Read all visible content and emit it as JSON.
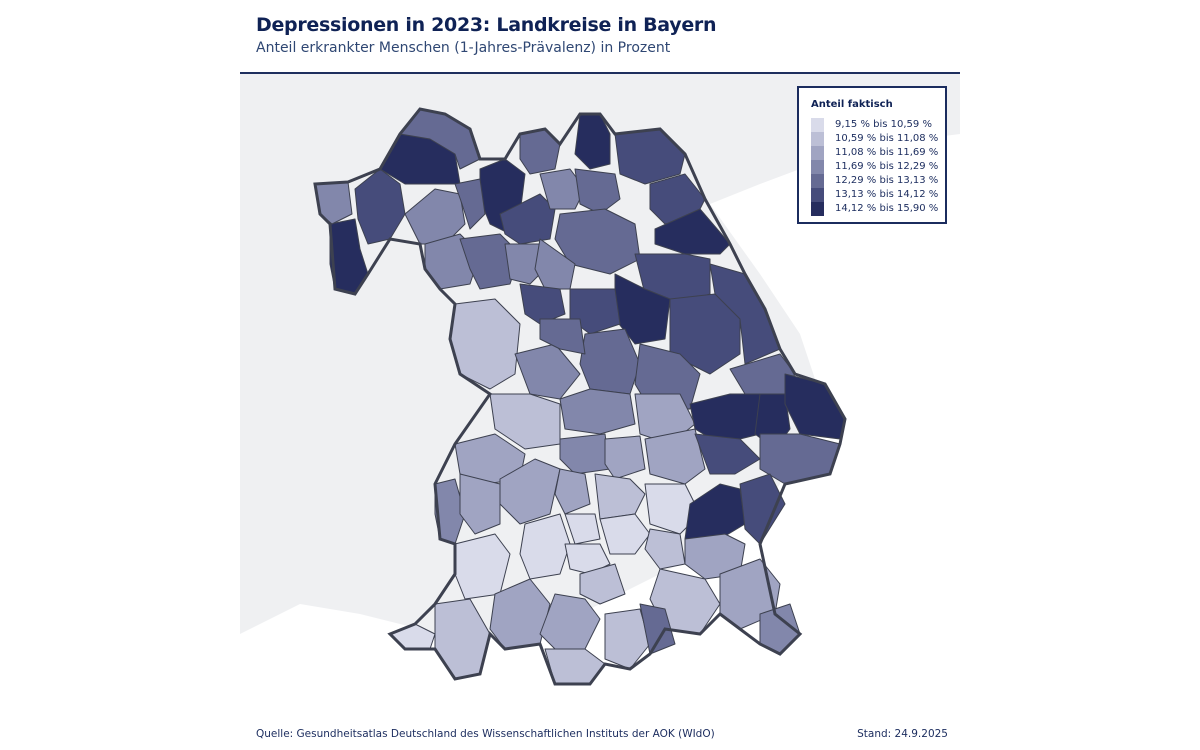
{
  "header": {
    "title": "Depressionen in 2023: Landkreise in Bayern",
    "subtitle": "Anteil erkrankter Menschen (1-Jahres-Prävalenz) in Prozent"
  },
  "legend": {
    "title": "Anteil faktisch",
    "classes": [
      {
        "label": "9,15 % bis 10,59 %",
        "color": "#d9dbea"
      },
      {
        "label": "10,59 % bis 11,08 %",
        "color": "#bcbfd6"
      },
      {
        "label": "11,08 % bis 11,69 %",
        "color": "#a0a4c2"
      },
      {
        "label": "11,69 % bis 12,29 %",
        "color": "#8287ab"
      },
      {
        "label": "12,29 % bis 13,13 %",
        "color": "#656a93"
      },
      {
        "label": "13,13 % bis 14,12 %",
        "color": "#464c7b"
      },
      {
        "label": "14,12 % bis 15,90 %",
        "color": "#262d5e"
      }
    ]
  },
  "footer": {
    "source": "Quelle: Gesundheitsatlas Deutschland des Wissenschaftlichen Instituts der AOK (WIdO)",
    "stand": "Stand: 24.9.2025"
  },
  "chart_data": {
    "type": "choropleth",
    "title": "Depressionen in 2023: Landkreise in Bayern",
    "subtitle": "Anteil erkrankter Menschen (1-Jahres-Prävalenz) in Prozent",
    "region": "Bayern",
    "unit": "%",
    "legend_position": "top-right",
    "classes": [
      "9,15 % bis 10,59 %",
      "10,59 % bis 11,08 %",
      "11,08 % bis 11,69 %",
      "11,69 % bis 12,29 %",
      "12,29 % bis 13,13 %",
      "13,13 % bis 14,12 %",
      "14,12 % bis 15,90 %"
    ],
    "districts": [
      {
        "id": "unterfranken-west",
        "class": 6
      },
      {
        "id": "aschaffenburg-nord",
        "class": 3
      },
      {
        "id": "main-spessart",
        "class": 5
      },
      {
        "id": "bad-kissingen",
        "class": 6
      },
      {
        "id": "rhoen-grabfeld",
        "class": 4
      },
      {
        "id": "hassberge",
        "class": 6
      },
      {
        "id": "coburg",
        "class": 4
      },
      {
        "id": "kronach",
        "class": 6
      },
      {
        "id": "hof",
        "class": 5
      },
      {
        "id": "wunsiedel",
        "class": 5
      },
      {
        "id": "tirschenreuth",
        "class": 6
      },
      {
        "id": "wuerzburg",
        "class": 3
      },
      {
        "id": "schweinfurt",
        "class": 4
      },
      {
        "id": "bamberg",
        "class": 5
      },
      {
        "id": "lichtenfels",
        "class": 3
      },
      {
        "id": "kulmbach",
        "class": 4
      },
      {
        "id": "bayreuth",
        "class": 4
      },
      {
        "id": "neustadt-waldnaab",
        "class": 5
      },
      {
        "id": "kitzingen",
        "class": 3
      },
      {
        "id": "neustadt-aisch",
        "class": 4
      },
      {
        "id": "erlangen-hoechstadt",
        "class": 3
      },
      {
        "id": "forchheim",
        "class": 3
      },
      {
        "id": "amberg-sulzbach",
        "class": 6
      },
      {
        "id": "schwandorf",
        "class": 5
      },
      {
        "id": "cham",
        "class": 5
      },
      {
        "id": "ansbach",
        "class": 1
      },
      {
        "id": "fuerth-nuernberg",
        "class": 5
      },
      {
        "id": "nuernberger-land",
        "class": 5
      },
      {
        "id": "neumarkt",
        "class": 4
      },
      {
        "id": "regensburg",
        "class": 4
      },
      {
        "id": "regen",
        "class": 4
      },
      {
        "id": "weissenburg",
        "class": 3
      },
      {
        "id": "roth",
        "class": 4
      },
      {
        "id": "eichstaett",
        "class": 3
      },
      {
        "id": "kelheim",
        "class": 2
      },
      {
        "id": "straubing-bogen",
        "class": 6
      },
      {
        "id": "deggendorf",
        "class": 6
      },
      {
        "id": "freyung-grafenau",
        "class": 6
      },
      {
        "id": "donau-ries",
        "class": 1
      },
      {
        "id": "neuburg",
        "class": 3
      },
      {
        "id": "pfaffenhofen",
        "class": 2
      },
      {
        "id": "landshut",
        "class": 2
      },
      {
        "id": "dingolfing",
        "class": 5
      },
      {
        "id": "passau",
        "class": 4
      },
      {
        "id": "dillingen",
        "class": 2
      },
      {
        "id": "augsburg",
        "class": 2
      },
      {
        "id": "aichach",
        "class": 2
      },
      {
        "id": "freising",
        "class": 1
      },
      {
        "id": "erding",
        "class": 0
      },
      {
        "id": "muehldorf",
        "class": 6
      },
      {
        "id": "rottal-inn",
        "class": 5
      },
      {
        "id": "neu-ulm",
        "class": 3
      },
      {
        "id": "guenzburg",
        "class": 2
      },
      {
        "id": "dachau",
        "class": 0
      },
      {
        "id": "muenchen",
        "class": 0
      },
      {
        "id": "ebersberg",
        "class": 1
      },
      {
        "id": "altoetting",
        "class": 2
      },
      {
        "id": "unterallgaeu",
        "class": 0
      },
      {
        "id": "landsberg",
        "class": 0
      },
      {
        "id": "fuerstenfeldbruck",
        "class": 0
      },
      {
        "id": "starnberg",
        "class": 1
      },
      {
        "id": "rosenheim",
        "class": 1
      },
      {
        "id": "traunstein",
        "class": 2
      },
      {
        "id": "berchtesgaden",
        "class": 3
      },
      {
        "id": "lindau",
        "class": 0
      },
      {
        "id": "oberallgaeu",
        "class": 1
      },
      {
        "id": "ostallgaeu",
        "class": 2
      },
      {
        "id": "weilheim",
        "class": 2
      },
      {
        "id": "garmisch",
        "class": 1
      },
      {
        "id": "bad-toelz",
        "class": 1
      },
      {
        "id": "miesbach",
        "class": 4
      }
    ]
  }
}
